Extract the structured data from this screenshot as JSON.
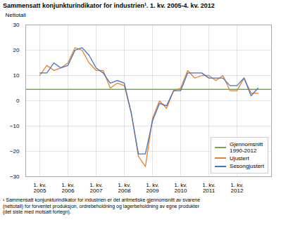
{
  "chart_data": {
    "type": "line",
    "title": "Sammensatt konjunkturindikator for industrien¹. 1. kv. 2005-4. kv. 2012",
    "ylabel": "Nettotall",
    "footnote": "¹ Sammensatt konjunkturindikator for industrien er det aritmetiske gjennomsnitt av svarene\n(nettotall) for forventet produksjon, ordrebeholdning og lagerbeholdning av egne produkter\n(det siste med motsatt fortegn).",
    "categories": [
      "1. kv.\n2005",
      null,
      null,
      null,
      "1. kv.\n2006",
      null,
      null,
      null,
      "1. kv.\n2007",
      null,
      null,
      null,
      "1. kv.\n2008",
      null,
      null,
      null,
      "1. kv.\n2009",
      null,
      null,
      null,
      "1. kv.\n2010",
      null,
      null,
      null,
      "1. kv.\n2011",
      null,
      null,
      null,
      "1. kv.\n2012",
      null,
      null,
      null
    ],
    "average": {
      "name": "Gjennomsnitt\n1990-2012",
      "color": "#70AD47",
      "value": 4.5
    },
    "series": [
      {
        "name": "Ujustert",
        "color": "#E8822A",
        "values": [
          10,
          14,
          12,
          13,
          15,
          21,
          20,
          15,
          12,
          12,
          5,
          7,
          6,
          -5,
          -22,
          -26,
          -7,
          0,
          -3,
          4,
          5,
          12,
          9,
          10,
          10,
          8,
          10,
          4,
          4,
          9,
          3,
          3
        ]
      },
      {
        "name": "Sesongjustert",
        "color": "#4472C4",
        "values": [
          11,
          11,
          15,
          13,
          14,
          20,
          21,
          18,
          13,
          11,
          7,
          8,
          7,
          -5,
          -21,
          -21,
          -8,
          -1,
          -2,
          4,
          4,
          11,
          11,
          11,
          9,
          9,
          9,
          6,
          6,
          9,
          2,
          5
        ]
      }
    ],
    "ylim": [
      -30,
      30
    ],
    "yticks": [
      -30,
      -20,
      -10,
      0,
      10,
      20,
      30
    ],
    "grid": true,
    "legend": "lower right"
  }
}
